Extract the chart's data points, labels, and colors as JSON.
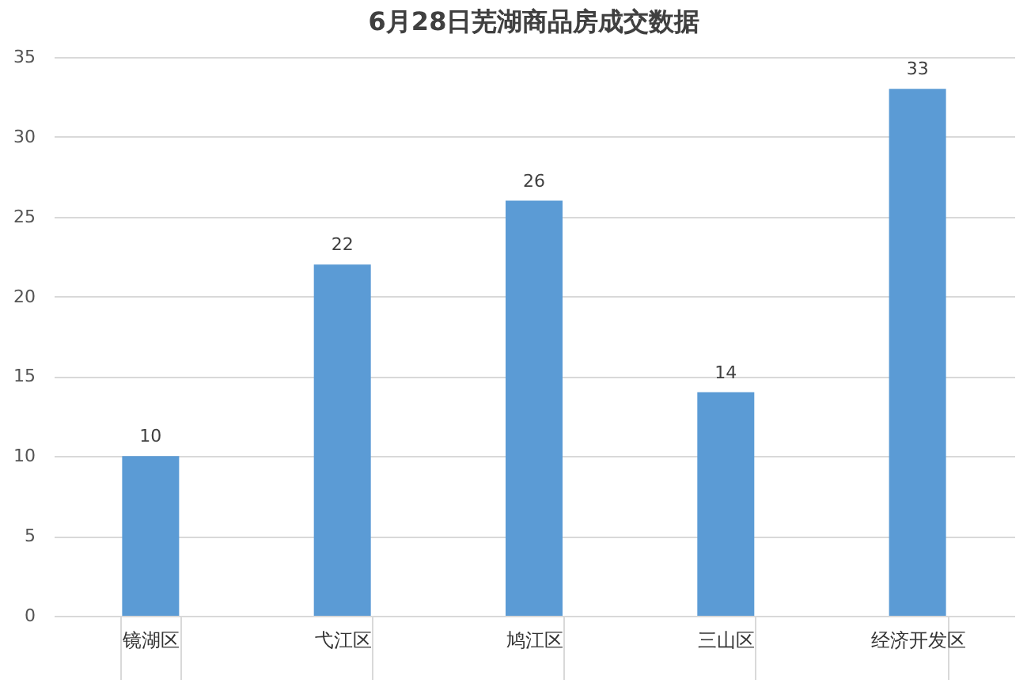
{
  "chart_data": {
    "type": "bar",
    "title": "6月28日芜湖商品房成交数据",
    "categories": [
      "镜湖区",
      "弋江区",
      "鸠江区",
      "三山区",
      "经济开发区"
    ],
    "values": [
      10,
      22,
      26,
      14,
      33
    ],
    "color": "#5b9bd5",
    "ylim": [
      0,
      35
    ],
    "yticks": [
      0,
      5,
      10,
      15,
      20,
      25,
      30,
      35
    ],
    "grid": "y",
    "data_labels": true
  }
}
